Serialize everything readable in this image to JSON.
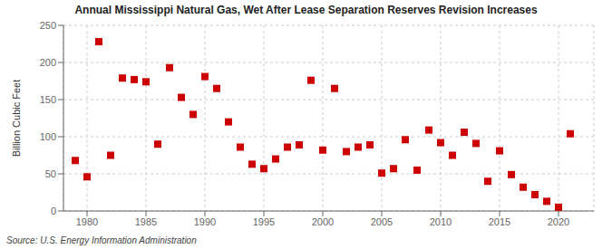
{
  "chart_data": {
    "type": "scatter",
    "title": "Annual Mississippi Natural Gas, Wet After Lease Separation Reserves Revision Increases",
    "ylabel": "Billion Cubic Feet",
    "annotations": [
      "Source: U.S. Energy Information Administration"
    ],
    "x": [
      1979,
      1980,
      1981,
      1982,
      1983,
      1984,
      1985,
      1986,
      1987,
      1988,
      1989,
      1990,
      1991,
      1992,
      1993,
      1994,
      1995,
      1996,
      1997,
      1998,
      1999,
      2000,
      2001,
      2002,
      2003,
      2004,
      2005,
      2006,
      2007,
      2008,
      2009,
      2010,
      2011,
      2012,
      2013,
      2014,
      2015,
      2016,
      2017,
      2018,
      2019,
      2020,
      2021
    ],
    "values": [
      68,
      46,
      228,
      75,
      179,
      177,
      174,
      90,
      193,
      153,
      130,
      181,
      165,
      120,
      86,
      63,
      57,
      70,
      86,
      89,
      176,
      82,
      165,
      80,
      86,
      89,
      51,
      57,
      96,
      55,
      109,
      92,
      75,
      106,
      91,
      40,
      81,
      49,
      32,
      22,
      13,
      5,
      104
    ],
    "color": "#cc0000",
    "marker": "square",
    "xlim": [
      1978,
      2023
    ],
    "ylim": [
      0,
      250
    ],
    "xticks": [
      1980,
      1985,
      1990,
      1995,
      2000,
      2005,
      2010,
      2015,
      2020
    ],
    "yticks": [
      0,
      50,
      100,
      150,
      200,
      250
    ],
    "grid": true
  }
}
